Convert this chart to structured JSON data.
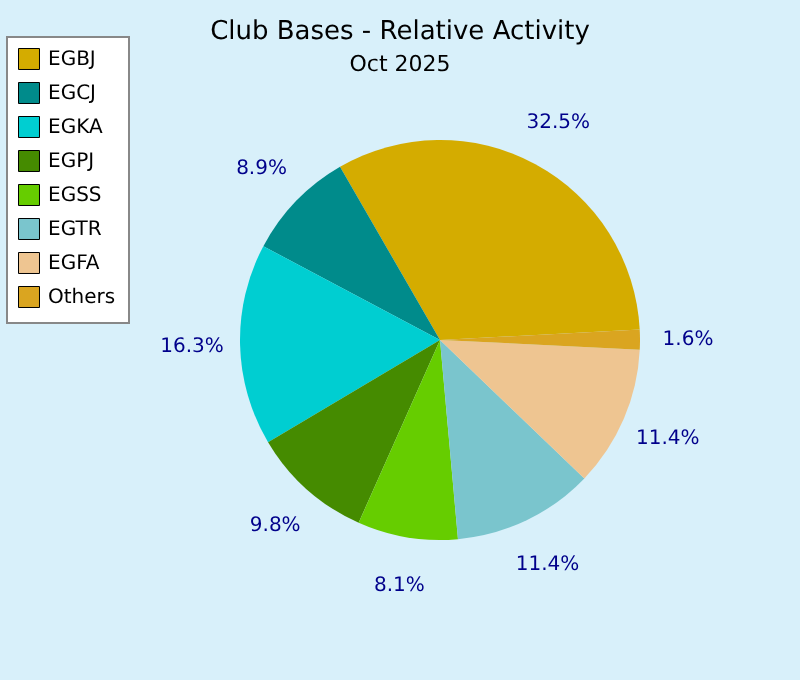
{
  "chart_data": {
    "type": "pie",
    "title": "Club Bases - Relative Activity",
    "subtitle": "Oct 2025",
    "categories": [
      "EGBJ",
      "EGCJ",
      "EGKA",
      "EGPJ",
      "EGSS",
      "EGTR",
      "EGFA",
      "Others"
    ],
    "values": [
      32.5,
      8.9,
      16.3,
      9.8,
      8.1,
      11.4,
      11.4,
      1.6
    ],
    "value_labels": [
      "32.5%",
      "8.9%",
      "16.3%",
      "9.8%",
      "8.1%",
      "11.4%",
      "11.4%",
      "1.6%"
    ],
    "colors": [
      "#d4ac00",
      "#008b8b",
      "#00ced1",
      "#458b00",
      "#66cd00",
      "#7ac5cd",
      "#eec591",
      "#daa520"
    ],
    "legend": "top left"
  }
}
